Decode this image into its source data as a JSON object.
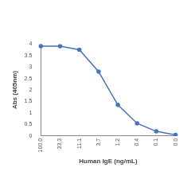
{
  "chart_data": {
    "type": "line",
    "x_label": "Human IgE (ng/mL)",
    "y_label": "Abs (405nm)",
    "categories": [
      "100.0",
      "33.3",
      "11.1",
      "3.7",
      "1.2",
      "0.4",
      "0.1",
      "0.0"
    ],
    "values": [
      3.9,
      3.9,
      3.75,
      2.8,
      1.35,
      0.55,
      0.2,
      0.05
    ],
    "color": "#4472c4",
    "marker": "circle",
    "ylim": [
      0,
      4
    ],
    "yticks": [
      0,
      0.5,
      1,
      1.5,
      2,
      2.5,
      3,
      3.5,
      4
    ],
    "grid": false
  }
}
